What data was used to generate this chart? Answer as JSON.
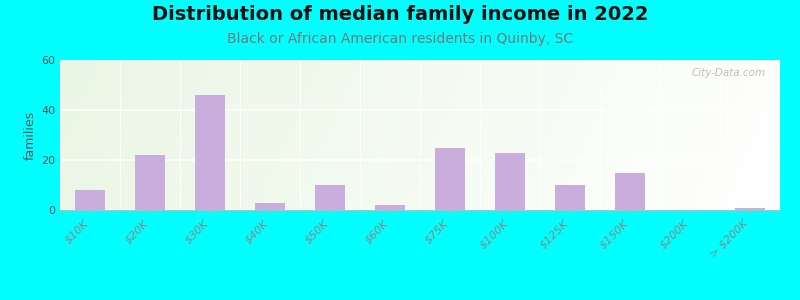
{
  "title": "Distribution of median family income in 2022",
  "subtitle": "Black or African American residents in Quinby, SC",
  "ylabel": "families",
  "background_outer": "#00FFFF",
  "bar_color": "#c9aedd",
  "categories": [
    "$10K",
    "$20K",
    "$30K",
    "$40K",
    "$50K",
    "$60K",
    "$75K",
    "$100K",
    "$125K",
    "$150K",
    "$200K",
    "> $200K"
  ],
  "values": [
    8,
    22,
    46,
    3,
    10,
    2,
    25,
    23,
    10,
    15,
    0,
    1
  ],
  "ylim": [
    0,
    60
  ],
  "yticks": [
    0,
    20,
    40,
    60
  ],
  "title_fontsize": 14,
  "subtitle_fontsize": 10,
  "ylabel_fontsize": 9,
  "watermark": "City-Data.com",
  "subtitle_color": "#777777",
  "title_color": "#111111"
}
